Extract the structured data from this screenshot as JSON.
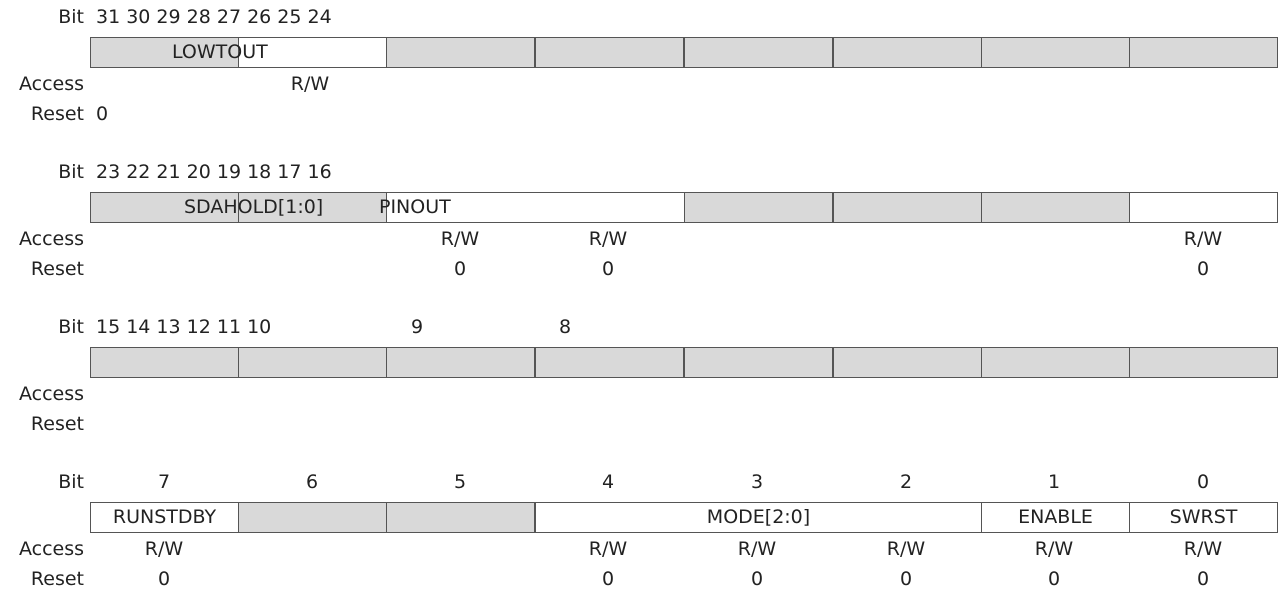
{
  "labels": {
    "bit": "Bit",
    "access": "Access",
    "reset": "Reset"
  },
  "colors": {
    "reserved": "#d9d9d9",
    "border": "#555555",
    "text": "#222222"
  },
  "reg31": {
    "bits": "31 30 29 28 27 26 25 24",
    "field_name": "LOWTOUT",
    "access": "R/W",
    "reset": "0"
  },
  "reg23": {
    "bits": "23 22 21 20 19 18 17 16",
    "fields": [
      "SDAHOLD[1:0]",
      "PINOUT"
    ],
    "access": [
      "R/W",
      "R/W",
      "R/W"
    ],
    "reset": [
      "0",
      "0",
      "0"
    ]
  },
  "reg15": {
    "bits": "15 14 13 12 11 10",
    "extra_bits": [
      "9",
      "8"
    ]
  },
  "reg7": {
    "bits": [
      "7",
      "6",
      "5",
      "4",
      "3",
      "2",
      "1",
      "0"
    ],
    "fields": {
      "runstdby": "RUNSTDBY",
      "mode": "MODE[2:0]",
      "enable": "ENABLE",
      "swrst": "SWRST"
    },
    "access": {
      "b7": "R/W",
      "b4": "R/W",
      "b3": "R/W",
      "b2": "R/W",
      "b1": "R/W",
      "b0": "R/W"
    },
    "reset": {
      "b7": "0",
      "b4": "0",
      "b3": "0",
      "b2": "0",
      "b1": "0",
      "b0": "0"
    }
  }
}
